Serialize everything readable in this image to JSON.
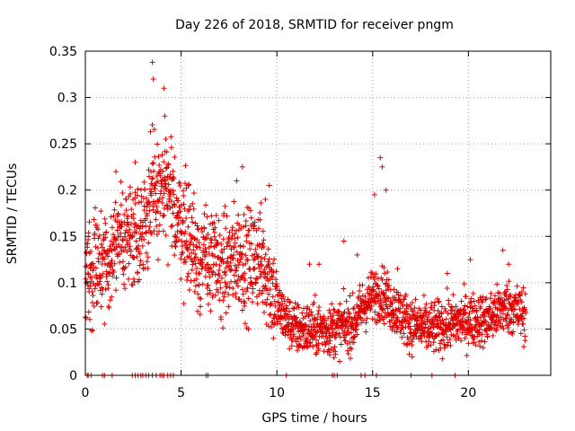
{
  "chart_data": {
    "type": "scatter",
    "title": "Day 226 of 2018, SRMTID for receiver pngm",
    "xlabel": "GPS time / hours",
    "ylabel": "SRMTID / TECUs",
    "xlim": [
      0,
      24.3
    ],
    "ylim": [
      0,
      0.35
    ],
    "x_ticks": [
      0,
      5,
      10,
      15,
      20
    ],
    "x_tick_labels": [
      "0",
      "5",
      "10",
      "15",
      "20"
    ],
    "y_ticks": [
      0,
      0.05,
      0.1,
      0.15,
      0.2,
      0.25,
      0.3,
      0.35
    ],
    "y_tick_labels": [
      "0",
      "0.05",
      "0.1",
      "0.15",
      "0.2",
      "0.25",
      "0.3",
      "0.35"
    ],
    "grid": true,
    "marker": "+",
    "marker_color": "#e00000",
    "series": [
      {
        "name": "SRMTID",
        "trend": [
          [
            0,
            0.115
          ],
          [
            0.5,
            0.115
          ],
          [
            1,
            0.12
          ],
          [
            1.5,
            0.14
          ],
          [
            2,
            0.15
          ],
          [
            2.5,
            0.155
          ],
          [
            3,
            0.16
          ],
          [
            3.5,
            0.19
          ],
          [
            4,
            0.2
          ],
          [
            4.5,
            0.185
          ],
          [
            5,
            0.165
          ],
          [
            5.5,
            0.145
          ],
          [
            6,
            0.125
          ],
          [
            6.5,
            0.125
          ],
          [
            7,
            0.115
          ],
          [
            7.5,
            0.12
          ],
          [
            8,
            0.13
          ],
          [
            8.5,
            0.12
          ],
          [
            9,
            0.13
          ],
          [
            9.5,
            0.11
          ],
          [
            10,
            0.075
          ],
          [
            10.5,
            0.06
          ],
          [
            11,
            0.05
          ],
          [
            12,
            0.05
          ],
          [
            13,
            0.05
          ],
          [
            14,
            0.055
          ],
          [
            14.5,
            0.075
          ],
          [
            15,
            0.085
          ],
          [
            15.5,
            0.09
          ],
          [
            16,
            0.075
          ],
          [
            16.5,
            0.065
          ],
          [
            17,
            0.055
          ],
          [
            18,
            0.05
          ],
          [
            19,
            0.055
          ],
          [
            20,
            0.06
          ],
          [
            21,
            0.06
          ],
          [
            22,
            0.075
          ],
          [
            22.5,
            0.07
          ],
          [
            23,
            0.065
          ]
        ],
        "outliers": [
          {
            "x": 3.5,
            "y": 0.338
          },
          {
            "x": 3.55,
            "y": 0.32
          },
          {
            "x": 4.1,
            "y": 0.31
          },
          {
            "x": 4.15,
            "y": 0.28
          },
          {
            "x": 3.4,
            "y": 0.263
          },
          {
            "x": 4.2,
            "y": 0.255
          },
          {
            "x": 15.4,
            "y": 0.235
          },
          {
            "x": 15.5,
            "y": 0.225
          },
          {
            "x": 15.7,
            "y": 0.2
          },
          {
            "x": 15.1,
            "y": 0.195
          },
          {
            "x": 8.2,
            "y": 0.225
          },
          {
            "x": 7.9,
            "y": 0.21
          },
          {
            "x": 9.6,
            "y": 0.205
          },
          {
            "x": 9.4,
            "y": 0.19
          },
          {
            "x": 1.6,
            "y": 0.22
          },
          {
            "x": 2.6,
            "y": 0.23
          },
          {
            "x": 13.5,
            "y": 0.145
          },
          {
            "x": 14.2,
            "y": 0.13
          },
          {
            "x": 20.1,
            "y": 0.125
          },
          {
            "x": 21.8,
            "y": 0.135
          },
          {
            "x": 22.1,
            "y": 0.12
          },
          {
            "x": 11.7,
            "y": 0.12
          },
          {
            "x": 12.2,
            "y": 0.12
          },
          {
            "x": 16.3,
            "y": 0.115
          },
          {
            "x": 18.9,
            "y": 0.11
          }
        ],
        "zero_points": [
          0.1,
          0.15,
          0.3,
          0.9,
          1.0,
          1.4,
          2.45,
          2.6,
          2.75,
          2.9,
          3.0,
          3.15,
          3.3,
          3.5,
          3.7,
          3.9,
          4.0,
          4.1,
          4.3,
          4.45,
          4.6,
          6.3,
          6.4,
          10.5,
          12.9,
          13.0,
          13.15,
          14.4,
          14.6,
          15.2,
          17.0,
          18.1,
          19.3
        ]
      }
    ]
  }
}
